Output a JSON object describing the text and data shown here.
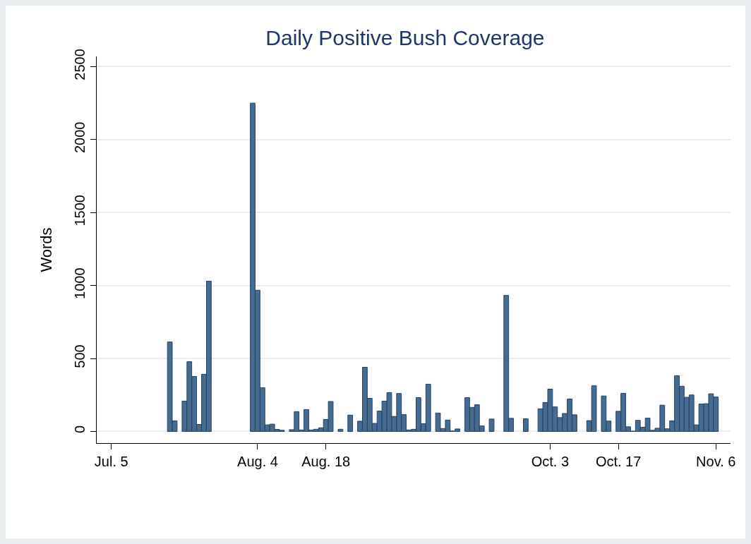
{
  "chart_data": {
    "type": "bar",
    "title": "Daily Positive Bush Coverage",
    "ylabel": "Words",
    "x": [
      "--07-17",
      "--07-18",
      "--07-20",
      "--07-21",
      "--07-22",
      "--07-23",
      "--07-24",
      "--07-25",
      "--08-03",
      "--08-04",
      "--08-05",
      "--08-06",
      "--08-07",
      "--08-08",
      "--08-09",
      "--08-11",
      "--08-12",
      "--08-13",
      "--08-14",
      "--08-15",
      "--08-16",
      "--08-17",
      "--08-18",
      "--08-19",
      "--08-21",
      "--08-23",
      "--08-25",
      "--08-26",
      "--08-27",
      "--08-28",
      "--08-29",
      "--08-30",
      "--08-31",
      "--09-01",
      "--09-02",
      "--09-03",
      "--09-04",
      "--09-05",
      "--09-06",
      "--09-07",
      "--09-08",
      "--09-10",
      "--09-11",
      "--09-12",
      "--09-13",
      "--09-14",
      "--09-16",
      "--09-17",
      "--09-18",
      "--09-19",
      "--09-21",
      "--09-24",
      "--09-25",
      "--09-28",
      "--10-01",
      "--10-02",
      "--10-03",
      "--10-04",
      "--10-05",
      "--10-06",
      "--10-07",
      "--10-08",
      "--10-11",
      "--10-12",
      "--10-14",
      "--10-15",
      "--10-17",
      "--10-18",
      "--10-19",
      "--10-20",
      "--10-21",
      "--10-22",
      "--10-23",
      "--10-24",
      "--10-25",
      "--10-26",
      "--10-27",
      "--10-28",
      "--10-29",
      "--10-30",
      "--10-31",
      "--11-01",
      "--11-02",
      "--11-03",
      "--11-04",
      "--11-05",
      "--11-06"
    ],
    "values": [
      613,
      72,
      208,
      478,
      377,
      48,
      392,
      1030,
      2250,
      968,
      300,
      45,
      50,
      14,
      8,
      12,
      135,
      10,
      150,
      10,
      15,
      25,
      82,
      205,
      15,
      112,
      70,
      440,
      227,
      55,
      140,
      208,
      266,
      103,
      260,
      116,
      10,
      15,
      232,
      53,
      324,
      126,
      20,
      78,
      3,
      17,
      232,
      165,
      183,
      38,
      85,
      932,
      90,
      87,
      155,
      198,
      290,
      168,
      95,
      123,
      222,
      114,
      74,
      313,
      243,
      71,
      138,
      261,
      32,
      2,
      76,
      29,
      91,
      8,
      22,
      180,
      18,
      72,
      382,
      310,
      234,
      250,
      45,
      188,
      190,
      258,
      236
    ],
    "color": "#466b90",
    "xlim": [
      "--07-02",
      "--11-09"
    ],
    "xticks": [
      {
        "value": "--07-05",
        "label": "Jul. 5"
      },
      {
        "value": "--08-04",
        "label": "Aug. 4"
      },
      {
        "value": "--08-18",
        "label": "Aug. 18"
      },
      {
        "value": "--10-03",
        "label": "Oct. 3"
      },
      {
        "value": "--10-17",
        "label": "Oct. 17"
      },
      {
        "value": "--11-06",
        "label": "Nov. 6"
      }
    ],
    "ylim": [
      -80,
      2570
    ],
    "yticks": [
      0,
      500,
      1000,
      1500,
      2000,
      2500
    ],
    "grid": "y"
  }
}
